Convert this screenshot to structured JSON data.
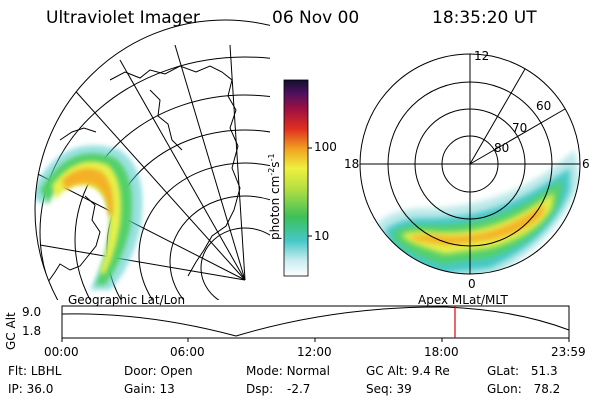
{
  "header": {
    "title": "Ultraviolet Imager",
    "date": "06 Nov 00",
    "time": "18:35:20 UT"
  },
  "colorbar": {
    "label_main": "photon cm",
    "label_exp1": "-2",
    "label_s": "s",
    "label_exp2": "-1",
    "ticks": [
      "100",
      "10"
    ]
  },
  "polar": {
    "labels": {
      "top": "12",
      "left": "18",
      "right": "6",
      "bottom": "0"
    },
    "lat_labels": [
      "60",
      "70",
      "80"
    ]
  },
  "panels": {
    "left_caption": "Geographic Lat/Lon",
    "right_caption": "Apex MLat/MLT"
  },
  "timeline": {
    "ylabel": "GC Alt",
    "yticks": [
      "9.0",
      "1.8"
    ],
    "xticks": [
      "00:00",
      "06:00",
      "12:00",
      "18:00",
      "23:59"
    ],
    "marker_hour": 18.59
  },
  "info": {
    "row1": [
      {
        "key": "Flt:",
        "value": "LBHL"
      },
      {
        "key": "Door:",
        "value": "Open"
      },
      {
        "key": "Mode:",
        "value": "Normal"
      },
      {
        "key": "GC Alt:",
        "value": "9.4 Re"
      },
      {
        "key": "GLat:",
        "value": "51.3"
      }
    ],
    "row2": [
      {
        "key": "IP:",
        "value": "36.0"
      },
      {
        "key": "Gain:",
        "value": "13"
      },
      {
        "key": "Dsp:",
        "value": "-2.7"
      },
      {
        "key": "Seq:",
        "value": "39"
      },
      {
        "key": "GLon:",
        "value": "78.2"
      }
    ]
  }
}
